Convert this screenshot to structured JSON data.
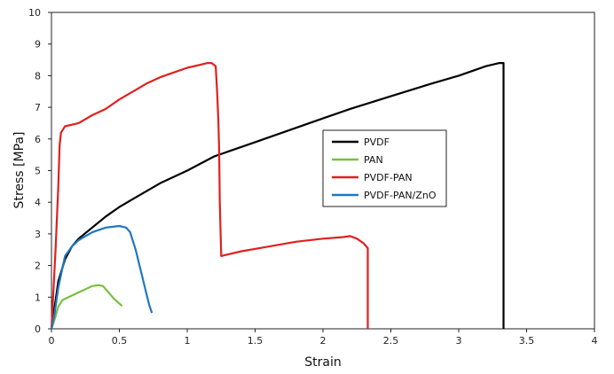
{
  "chart_data": {
    "type": "line",
    "title": "",
    "xlabel": "Strain",
    "ylabel": "Stress [MPa]",
    "xlim": [
      0,
      4
    ],
    "ylim": [
      0,
      10
    ],
    "x_ticks": [
      "0",
      "0.5",
      "1",
      "1.5",
      "2",
      "2.5",
      "3",
      "3.5",
      "4"
    ],
    "y_ticks": [
      "0",
      "1",
      "2",
      "3",
      "4",
      "5",
      "6",
      "7",
      "8",
      "9",
      "10"
    ],
    "grid": false,
    "legend_position": "center-right",
    "series": [
      {
        "name": "PVDF",
        "color": "#000000",
        "points": [
          [
            0,
            0
          ],
          [
            0.02,
            0.6
          ],
          [
            0.05,
            1.5
          ],
          [
            0.1,
            2.2
          ],
          [
            0.15,
            2.6
          ],
          [
            0.2,
            2.85
          ],
          [
            0.3,
            3.2
          ],
          [
            0.4,
            3.55
          ],
          [
            0.5,
            3.85
          ],
          [
            0.6,
            4.1
          ],
          [
            0.8,
            4.6
          ],
          [
            1.0,
            5.0
          ],
          [
            1.2,
            5.45
          ],
          [
            1.5,
            5.9
          ],
          [
            1.8,
            6.35
          ],
          [
            2.0,
            6.65
          ],
          [
            2.2,
            6.95
          ],
          [
            2.5,
            7.35
          ],
          [
            2.8,
            7.75
          ],
          [
            3.0,
            8.0
          ],
          [
            3.2,
            8.3
          ],
          [
            3.3,
            8.4
          ],
          [
            3.33,
            8.4
          ],
          [
            3.33,
            0
          ]
        ]
      },
      {
        "name": "PAN",
        "color": "#77c040",
        "points": [
          [
            0,
            0
          ],
          [
            0.02,
            0.25
          ],
          [
            0.05,
            0.7
          ],
          [
            0.08,
            0.9
          ],
          [
            0.1,
            0.95
          ],
          [
            0.15,
            1.05
          ],
          [
            0.2,
            1.15
          ],
          [
            0.25,
            1.25
          ],
          [
            0.3,
            1.35
          ],
          [
            0.35,
            1.38
          ],
          [
            0.38,
            1.35
          ],
          [
            0.42,
            1.15
          ],
          [
            0.46,
            0.95
          ],
          [
            0.5,
            0.8
          ],
          [
            0.52,
            0.72
          ]
        ]
      },
      {
        "name": "PVDF-PAN",
        "color": "#e02020",
        "points": [
          [
            0,
            0
          ],
          [
            0.03,
            2.5
          ],
          [
            0.05,
            4.5
          ],
          [
            0.06,
            5.8
          ],
          [
            0.07,
            6.2
          ],
          [
            0.1,
            6.4
          ],
          [
            0.2,
            6.5
          ],
          [
            0.3,
            6.75
          ],
          [
            0.4,
            6.95
          ],
          [
            0.5,
            7.25
          ],
          [
            0.6,
            7.5
          ],
          [
            0.7,
            7.75
          ],
          [
            0.8,
            7.95
          ],
          [
            0.9,
            8.1
          ],
          [
            1.0,
            8.25
          ],
          [
            1.1,
            8.35
          ],
          [
            1.15,
            8.4
          ],
          [
            1.18,
            8.4
          ],
          [
            1.21,
            8.3
          ],
          [
            1.22,
            7.5
          ],
          [
            1.23,
            6.5
          ],
          [
            1.235,
            5.6
          ],
          [
            1.24,
            4.0
          ],
          [
            1.25,
            2.3
          ],
          [
            1.4,
            2.45
          ],
          [
            1.6,
            2.6
          ],
          [
            1.8,
            2.75
          ],
          [
            2.0,
            2.85
          ],
          [
            2.15,
            2.9
          ],
          [
            2.2,
            2.93
          ],
          [
            2.25,
            2.85
          ],
          [
            2.3,
            2.7
          ],
          [
            2.33,
            2.55
          ],
          [
            2.33,
            0
          ]
        ]
      },
      {
        "name": "PVDF-PAN/ZnO",
        "color": "#1f77c0",
        "points": [
          [
            0,
            0
          ],
          [
            0.02,
            0.4
          ],
          [
            0.05,
            1.3
          ],
          [
            0.08,
            1.9
          ],
          [
            0.1,
            2.3
          ],
          [
            0.15,
            2.6
          ],
          [
            0.2,
            2.8
          ],
          [
            0.3,
            3.05
          ],
          [
            0.4,
            3.2
          ],
          [
            0.5,
            3.25
          ],
          [
            0.55,
            3.2
          ],
          [
            0.58,
            3.05
          ],
          [
            0.62,
            2.5
          ],
          [
            0.66,
            1.8
          ],
          [
            0.7,
            1.1
          ],
          [
            0.72,
            0.75
          ],
          [
            0.74,
            0.5
          ]
        ]
      }
    ]
  }
}
